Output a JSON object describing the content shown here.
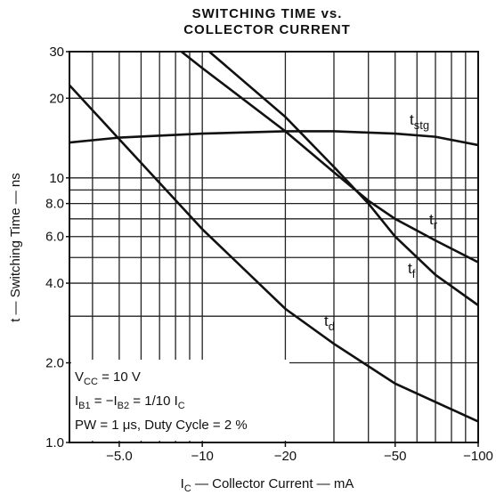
{
  "chart_data": {
    "type": "line",
    "title": [
      "SWITCHING TIME vs.",
      "COLLECTOR CURRENT"
    ],
    "x_label": [
      "I",
      "C",
      " — Collector Current — mA"
    ],
    "y_label": "t — Switching Time — ns",
    "conditions": [
      [
        "V",
        "CC",
        " = 10 V"
      ],
      [
        "I",
        "B1",
        " = −I",
        "B2",
        " = 1/10 I",
        "C"
      ],
      [
        "PW = 1 μs, Duty Cycle = 2 %"
      ]
    ],
    "log_x": true,
    "log_y": true,
    "xlim": [
      -3.3,
      -100
    ],
    "ylim": [
      1,
      30
    ],
    "xticks": [
      {
        "value": -5,
        "label": "−5.0"
      },
      {
        "value": -10,
        "label": "−10"
      },
      {
        "value": -20,
        "label": "−20"
      },
      {
        "value": -50,
        "label": "−50"
      },
      {
        "value": -100,
        "label": "−100"
      }
    ],
    "yticks": [
      {
        "value": 1,
        "label": "1.0"
      },
      {
        "value": 2,
        "label": "2.0"
      },
      {
        "value": 4,
        "label": "4.0"
      },
      {
        "value": 6,
        "label": "6.0"
      },
      {
        "value": 8,
        "label": "8.0"
      },
      10,
      20,
      30
    ],
    "xgrid": [
      -4,
      -5,
      -6,
      -7,
      -8,
      -9,
      -10,
      -20,
      -30,
      -40,
      -50,
      -60,
      -70,
      -80,
      -90,
      -100
    ],
    "ygrid": [
      1,
      2,
      3,
      4,
      5,
      6,
      7,
      8,
      9,
      10,
      20,
      30
    ],
    "grid": true,
    "color": "#111111",
    "series": [
      {
        "label": [
          "t",
          "stg"
        ],
        "x": [
          -3.3,
          -5,
          -10,
          -20,
          -30,
          -50,
          -70,
          -100
        ],
        "values": [
          13.6,
          14.2,
          14.7,
          15,
          15,
          14.7,
          14.3,
          13.3
        ]
      },
      {
        "label": [
          "t",
          "r"
        ],
        "x": [
          -8.4,
          -10,
          -20,
          -30,
          -40,
          -50,
          -70,
          -100
        ],
        "values": [
          30,
          26,
          15,
          10.5,
          8.2,
          7,
          5.8,
          4.8
        ]
      },
      {
        "label": [
          "t",
          "f"
        ],
        "x": [
          -10.6,
          -20,
          -30,
          -40,
          -50,
          -70,
          -100
        ],
        "values": [
          30,
          17,
          11,
          8,
          6,
          4.3,
          3.3
        ]
      },
      {
        "label": [
          "t",
          "d"
        ],
        "x": [
          -3.3,
          -5,
          -10,
          -20,
          -30,
          -50,
          -100
        ],
        "values": [
          22.4,
          14,
          6.4,
          3.2,
          2.36,
          1.67,
          1.2
        ]
      }
    ]
  }
}
